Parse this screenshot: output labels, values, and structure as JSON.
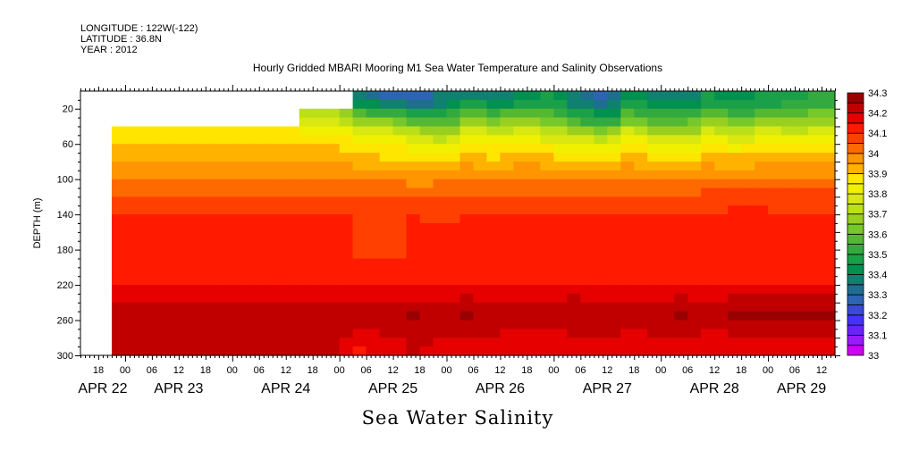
{
  "header": {
    "longitude": "LONGITUDE : 122W(-122)",
    "latitude": "LATITUDE : 36.8N",
    "year": "YEAR : 2012"
  },
  "chart_data": {
    "type": "heatmap",
    "title": "Hourly Gridded MBARI Mooring M1 Sea Water Temperature and Salinity Observations",
    "xlabel": "",
    "ylabel": "DEPTH (m)",
    "variable_label": "Sea Water Salinity",
    "x_units": "hours since APR 22 2012 00:00",
    "xlim": [
      14,
      183
    ],
    "ylim": [
      0,
      300
    ],
    "y_inverted": true,
    "y_ticks": [
      20,
      60,
      100,
      140,
      180,
      220,
      260,
      300
    ],
    "y_tick_labels": [
      "20",
      "60",
      "100",
      "140",
      "180",
      "220",
      "260",
      "300"
    ],
    "x_tick_hours": [
      18,
      24,
      30,
      36,
      42,
      48,
      54,
      60,
      66,
      72,
      78,
      84,
      90,
      96,
      102,
      108,
      114,
      120,
      126,
      132,
      138,
      144,
      150,
      156,
      162,
      168,
      174,
      180
    ],
    "x_tick_labels": [
      "18",
      "00",
      "06",
      "12",
      "18",
      "00",
      "06",
      "12",
      "18",
      "00",
      "06",
      "12",
      "18",
      "00",
      "06",
      "12",
      "18",
      "00",
      "06",
      "12",
      "18",
      "00",
      "06",
      "12",
      "18",
      "00",
      "06",
      "12"
    ],
    "day_labels": [
      {
        "label": "APR 22",
        "start": 0
      },
      {
        "label": "APR 23",
        "start": 24
      },
      {
        "label": "APR 24",
        "start": 48
      },
      {
        "label": "APR 25",
        "start": 72
      },
      {
        "label": "APR 26",
        "start": 96
      },
      {
        "label": "APR 27",
        "start": 120
      },
      {
        "label": "APR 28",
        "start": 144
      },
      {
        "label": "APR 29",
        "start": 168
      }
    ],
    "colorbar": {
      "min": 33.0,
      "max": 34.3,
      "step": 0.05,
      "labels": [
        "33",
        "33.1",
        "33.2",
        "33.3",
        "33.4",
        "33.5",
        "33.6",
        "33.7",
        "33.8",
        "33.9",
        "34",
        "34.1",
        "34.2",
        "34.3"
      ],
      "label_values": [
        33,
        33.1,
        33.2,
        33.3,
        33.4,
        33.5,
        33.6,
        33.7,
        33.8,
        33.9,
        34,
        34.1,
        34.2,
        34.3
      ],
      "colors": [
        "#d000f0",
        "#9a1aff",
        "#6a22ff",
        "#4433ff",
        "#3a4ad8",
        "#2e64b4",
        "#1f6e90",
        "#108070",
        "#009050",
        "#1aa048",
        "#33aa40",
        "#55b833",
        "#77c82a",
        "#99d020",
        "#bbe018",
        "#d8e810",
        "#f0f000",
        "#ffe600",
        "#ffb300",
        "#ff9500",
        "#ff6a00",
        "#ff4000",
        "#ff1a00",
        "#e60000",
        "#c00000",
        "#990000"
      ]
    },
    "depths": [
      10,
      30,
      50,
      70,
      90,
      110,
      130,
      150,
      170,
      190,
      210,
      230,
      250,
      270,
      290
    ],
    "depth_cell": 20,
    "time_cell": 6,
    "times": [
      24,
      30,
      36,
      42,
      48,
      54,
      60,
      66,
      72,
      78,
      84,
      90,
      96,
      102,
      108,
      114,
      120,
      126,
      132,
      138,
      144,
      150,
      156,
      162,
      168,
      174,
      180
    ],
    "values": [
      [
        null,
        null,
        33.87,
        33.92,
        33.97,
        34.02,
        34.07,
        34.12,
        34.12,
        34.12,
        34.12,
        34.17,
        34.22,
        34.22,
        34.22
      ],
      [
        null,
        null,
        33.87,
        33.92,
        33.97,
        34.02,
        34.07,
        34.12,
        34.12,
        34.12,
        34.12,
        34.17,
        34.22,
        34.22,
        34.22
      ],
      [
        null,
        null,
        33.87,
        33.92,
        33.97,
        34.02,
        34.07,
        34.12,
        34.12,
        34.12,
        34.12,
        34.17,
        34.22,
        34.22,
        34.22
      ],
      [
        null,
        null,
        33.87,
        33.92,
        33.97,
        34.02,
        34.07,
        34.12,
        34.12,
        34.12,
        34.12,
        34.17,
        34.22,
        34.22,
        34.22
      ],
      [
        null,
        null,
        33.87,
        33.92,
        33.97,
        34.02,
        34.07,
        34.12,
        34.12,
        34.12,
        34.12,
        34.17,
        34.22,
        34.22,
        34.22
      ],
      [
        null,
        null,
        33.87,
        33.92,
        33.97,
        34.02,
        34.07,
        34.12,
        34.12,
        34.12,
        34.12,
        34.17,
        34.22,
        34.22,
        34.22
      ],
      [
        null,
        null,
        33.87,
        33.92,
        33.97,
        34.02,
        34.07,
        34.12,
        34.12,
        34.12,
        34.12,
        34.17,
        34.22,
        34.22,
        34.22
      ],
      [
        null,
        33.72,
        33.87,
        33.92,
        33.97,
        34.02,
        34.07,
        34.12,
        34.12,
        34.12,
        34.12,
        34.17,
        34.22,
        34.22,
        34.22
      ],
      [
        null,
        33.72,
        33.86,
        33.92,
        33.97,
        34.02,
        34.07,
        34.12,
        34.12,
        34.12,
        34.12,
        34.17,
        34.22,
        34.22,
        34.2
      ],
      [
        33.35,
        33.62,
        33.8,
        33.9,
        33.95,
        34.02,
        34.07,
        34.08,
        34.08,
        34.1,
        34.13,
        34.18,
        34.22,
        34.2,
        34.15
      ],
      [
        33.3,
        33.6,
        33.82,
        33.88,
        33.95,
        34.03,
        34.08,
        34.09,
        34.08,
        34.09,
        34.13,
        34.18,
        34.23,
        34.21,
        34.17
      ],
      [
        33.25,
        33.55,
        33.75,
        33.86,
        33.93,
        34.02,
        34.07,
        34.11,
        34.11,
        34.1,
        34.13,
        34.17,
        34.27,
        34.22,
        34.2
      ],
      [
        33.35,
        33.52,
        33.7,
        33.87,
        33.95,
        34.02,
        34.06,
        34.1,
        34.1,
        34.1,
        34.13,
        34.17,
        34.22,
        34.21,
        34.18
      ],
      [
        33.4,
        33.65,
        33.82,
        33.9,
        33.97,
        34.03,
        34.08,
        34.11,
        34.11,
        34.11,
        34.13,
        34.18,
        34.26,
        34.22,
        34.17
      ],
      [
        33.38,
        33.6,
        33.78,
        33.88,
        33.95,
        34.03,
        34.07,
        34.11,
        34.11,
        34.11,
        34.14,
        34.18,
        34.24,
        34.21,
        34.17
      ],
      [
        33.42,
        33.62,
        33.82,
        33.92,
        33.98,
        34.04,
        34.08,
        34.11,
        34.11,
        34.11,
        34.14,
        34.18,
        34.25,
        34.2,
        34.17
      ],
      [
        33.45,
        33.6,
        33.76,
        33.88,
        33.96,
        34.03,
        34.08,
        34.11,
        34.11,
        34.11,
        34.14,
        34.18,
        34.23,
        34.2,
        34.17
      ],
      [
        33.35,
        33.5,
        33.72,
        33.86,
        33.94,
        34.02,
        34.07,
        34.11,
        34.11,
        34.11,
        34.13,
        34.18,
        34.26,
        34.21,
        34.17
      ],
      [
        33.3,
        33.45,
        33.7,
        33.85,
        33.94,
        34.02,
        34.07,
        34.11,
        34.11,
        34.11,
        34.13,
        34.18,
        34.22,
        34.21,
        34.18
      ],
      [
        33.42,
        33.6,
        33.8,
        33.9,
        33.97,
        34.04,
        34.08,
        34.11,
        34.11,
        34.11,
        34.13,
        34.18,
        34.22,
        34.2,
        34.17
      ],
      [
        33.4,
        33.55,
        33.72,
        33.86,
        33.95,
        34.03,
        34.08,
        34.11,
        34.11,
        34.11,
        34.14,
        34.18,
        34.23,
        34.21,
        34.17
      ],
      [
        33.38,
        33.55,
        33.72,
        33.86,
        33.95,
        34.03,
        34.08,
        34.13,
        34.12,
        34.11,
        34.14,
        34.18,
        34.26,
        34.22,
        34.17
      ],
      [
        33.45,
        33.62,
        33.8,
        33.9,
        33.97,
        34.04,
        34.09,
        34.11,
        34.11,
        34.11,
        34.14,
        34.18,
        34.22,
        34.2,
        34.17
      ],
      [
        33.42,
        33.58,
        33.75,
        33.88,
        33.96,
        34.04,
        34.09,
        34.13,
        34.12,
        34.11,
        34.14,
        34.18,
        34.26,
        34.22,
        34.17
      ],
      [
        33.45,
        33.62,
        33.8,
        33.92,
        33.98,
        34.05,
        34.09,
        34.13,
        34.13,
        34.11,
        34.14,
        34.18,
        34.26,
        34.22,
        34.17
      ],
      [
        33.48,
        33.62,
        33.78,
        33.9,
        33.97,
        34.04,
        34.09,
        34.12,
        34.11,
        34.11,
        34.14,
        34.18,
        34.26,
        34.22,
        34.17
      ],
      [
        33.5,
        33.65,
        33.82,
        33.92,
        33.98,
        34.05,
        34.09,
        34.12,
        34.11,
        34.11,
        34.14,
        34.18,
        34.26,
        34.22,
        34.17
      ]
    ]
  }
}
